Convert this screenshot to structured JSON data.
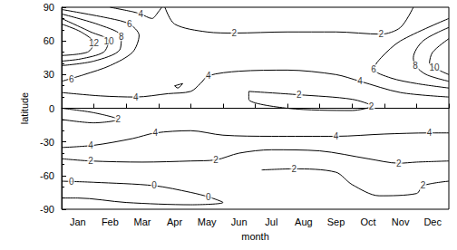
{
  "chart_data": {
    "type": "contour",
    "x_label": "month",
    "y_label": "latitude",
    "categories": [
      "Jan",
      "Feb",
      "Mar",
      "Apr",
      "May",
      "Jun",
      "Jul",
      "Aug",
      "Sep",
      "Oct",
      "Nov",
      "Dec"
    ],
    "xlim": [
      0,
      12
    ],
    "ylim": [
      -90,
      90
    ],
    "yticks": [
      -90,
      -60,
      -30,
      0,
      30,
      60,
      90
    ],
    "color": "#000000",
    "contours": [
      {
        "level": 12,
        "points": [
          [
            0,
            75
          ],
          [
            0.6,
            68
          ],
          [
            1.0,
            58
          ],
          [
            0.8,
            50
          ],
          [
            0,
            47
          ]
        ],
        "labels": [
          [
            1.0,
            58
          ]
        ]
      },
      {
        "level": 10,
        "points": [
          [
            0,
            80
          ],
          [
            0.9,
            68
          ],
          [
            1.46,
            60
          ],
          [
            1.3,
            50
          ],
          [
            0.6,
            44
          ],
          [
            0,
            42
          ]
        ],
        "labels": [
          [
            1.46,
            60
          ]
        ]
      },
      {
        "level": 8,
        "points": [
          [
            0,
            84
          ],
          [
            1.2,
            74
          ],
          [
            1.85,
            64
          ],
          [
            1.8,
            52
          ],
          [
            1.0,
            42
          ],
          [
            0,
            38
          ]
        ],
        "labels": [
          [
            1.85,
            64
          ]
        ]
      },
      {
        "level": 6,
        "points": [
          [
            0,
            88
          ],
          [
            1.5,
            80
          ],
          [
            2.1,
            75
          ],
          [
            2.4,
            65
          ],
          [
            2.2,
            50
          ],
          [
            1.5,
            38
          ],
          [
            0.7,
            30
          ],
          [
            0,
            24
          ]
        ],
        "labels": [
          [
            2.1,
            75
          ],
          [
            0.3,
            26
          ]
        ]
      },
      {
        "level": 4,
        "points": [
          [
            1.5,
            90
          ],
          [
            2.2,
            86
          ],
          [
            2.45,
            84
          ],
          [
            2.8,
            80
          ],
          [
            3.0,
            86
          ],
          [
            3.1,
            90
          ]
        ],
        "labels": [
          [
            2.45,
            84
          ]
        ]
      },
      {
        "level": 4,
        "points": [
          [
            0,
            14
          ],
          [
            1.2,
            11
          ],
          [
            2.3,
            10
          ],
          [
            3.3,
            13
          ],
          [
            4.0,
            15
          ],
          [
            4.3,
            22
          ],
          [
            4.55,
            29
          ],
          [
            5.5,
            33
          ],
          [
            7,
            34
          ],
          [
            8.5,
            30
          ],
          [
            9.25,
            24
          ],
          [
            10.5,
            14
          ],
          [
            12,
            10
          ]
        ],
        "labels": [
          [
            2.3,
            10
          ],
          [
            4.55,
            29
          ],
          [
            9.25,
            24
          ]
        ]
      },
      {
        "level": 4,
        "points": [
          [
            3.5,
            20
          ],
          [
            3.75,
            22
          ],
          [
            3.6,
            18
          ],
          [
            3.5,
            20
          ]
        ],
        "labels": []
      },
      {
        "level": 2,
        "points": [
          [
            3.2,
            90
          ],
          [
            3.5,
            75
          ],
          [
            4.5,
            68
          ],
          [
            5.35,
            67
          ],
          [
            7,
            68
          ],
          [
            8.5,
            68
          ],
          [
            9.9,
            66
          ],
          [
            10.5,
            72
          ],
          [
            10.9,
            90
          ]
        ],
        "labels": [
          [
            5.35,
            67
          ],
          [
            9.9,
            66
          ]
        ]
      },
      {
        "level": 10,
        "points": [
          [
            12,
            62
          ],
          [
            11.5,
            50
          ],
          [
            11.4,
            40
          ],
          [
            11.55,
            36
          ],
          [
            12,
            30
          ]
        ],
        "labels": [
          [
            11.55,
            36
          ]
        ]
      },
      {
        "level": 8,
        "points": [
          [
            12,
            72
          ],
          [
            11.2,
            60
          ],
          [
            10.9,
            45
          ],
          [
            10.96,
            38
          ],
          [
            11.3,
            30
          ],
          [
            12,
            24
          ]
        ],
        "labels": [
          [
            10.96,
            38
          ]
        ]
      },
      {
        "level": 6,
        "points": [
          [
            12,
            80
          ],
          [
            10.5,
            60
          ],
          [
            9.9,
            45
          ],
          [
            9.67,
            35
          ],
          [
            10.2,
            27
          ],
          [
            11,
            22
          ],
          [
            12,
            18
          ]
        ],
        "labels": [
          [
            9.67,
            35
          ]
        ]
      },
      {
        "level": 2,
        "points": [
          [
            0,
            0
          ],
          [
            1.0,
            -4
          ],
          [
            1.75,
            -10
          ],
          [
            1.0,
            -13
          ],
          [
            0,
            -10
          ]
        ],
        "labels": [
          [
            1.75,
            -10
          ]
        ]
      },
      {
        "level": 2,
        "points": [
          [
            5.8,
            15
          ],
          [
            7.36,
            12
          ],
          [
            9,
            8
          ],
          [
            9.6,
            2
          ],
          [
            9.0,
            -2
          ],
          [
            7,
            0
          ],
          [
            5.8,
            8
          ],
          [
            5.8,
            15
          ]
        ],
        "labels": [
          [
            7.36,
            12
          ],
          [
            9.6,
            2
          ]
        ]
      },
      {
        "level": 4,
        "points": [
          [
            0,
            -35
          ],
          [
            1,
            -33
          ],
          [
            2.2,
            -27
          ],
          [
            2.9,
            -22
          ],
          [
            4,
            -20
          ],
          [
            5,
            -24
          ],
          [
            6.5,
            -25
          ],
          [
            8.5,
            -25
          ],
          [
            10,
            -23
          ],
          [
            11.4,
            -22
          ],
          [
            12,
            -22
          ]
        ],
        "labels": [
          [
            0.9,
            -33
          ],
          [
            2.9,
            -22
          ],
          [
            8.5,
            -25
          ],
          [
            11.4,
            -22
          ]
        ]
      },
      {
        "level": 2,
        "points": [
          [
            0,
            -45
          ],
          [
            0.9,
            -47
          ],
          [
            2.5,
            -48
          ],
          [
            4,
            -47
          ],
          [
            4.78,
            -46
          ],
          [
            5.5,
            -40
          ],
          [
            6.5,
            -37
          ],
          [
            8,
            -38
          ],
          [
            9.5,
            -45
          ],
          [
            10.45,
            -49
          ],
          [
            11,
            -48
          ],
          [
            12,
            -47
          ]
        ],
        "labels": [
          [
            0.9,
            -47
          ],
          [
            4.78,
            -46
          ],
          [
            10.45,
            -49
          ]
        ]
      },
      {
        "level": 2,
        "points": [
          [
            6.2,
            -55
          ],
          [
            7.2,
            -54
          ],
          [
            8.5,
            -57
          ],
          [
            9,
            -68
          ],
          [
            9.84,
            -78
          ],
          [
            11,
            -76
          ],
          [
            11.2,
            -69
          ],
          [
            12,
            -65
          ]
        ],
        "labels": [
          [
            7.2,
            -54
          ],
          [
            11.2,
            -69
          ]
        ]
      },
      {
        "level": 0,
        "points": [
          [
            0,
            -65
          ],
          [
            1,
            -66
          ],
          [
            2.87,
            -69
          ],
          [
            4,
            -75
          ],
          [
            4.55,
            -79
          ],
          [
            5,
            -84
          ],
          [
            4,
            -86
          ],
          [
            2,
            -84
          ],
          [
            0.5,
            -80
          ],
          [
            0,
            -80
          ]
        ],
        "labels": [
          [
            0.3,
            -65
          ],
          [
            2.87,
            -69
          ],
          [
            4.55,
            -79
          ]
        ]
      }
    ]
  }
}
